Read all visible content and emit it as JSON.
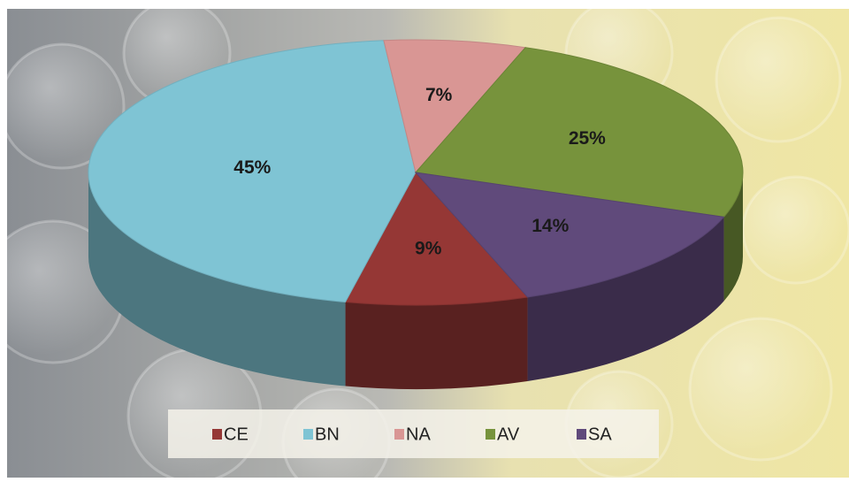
{
  "chart_data": {
    "type": "pie",
    "categories": [
      "CE",
      "BN",
      "NA",
      "AV",
      "SA"
    ],
    "values": [
      9,
      45,
      7,
      25,
      14
    ],
    "value_labels": [
      "9%",
      "45%",
      "7%",
      "25%",
      "14%"
    ],
    "colors": [
      "#953735",
      "#7fc4d4",
      "#d99694",
      "#77933c",
      "#604a7b"
    ],
    "legend": "bottom"
  }
}
